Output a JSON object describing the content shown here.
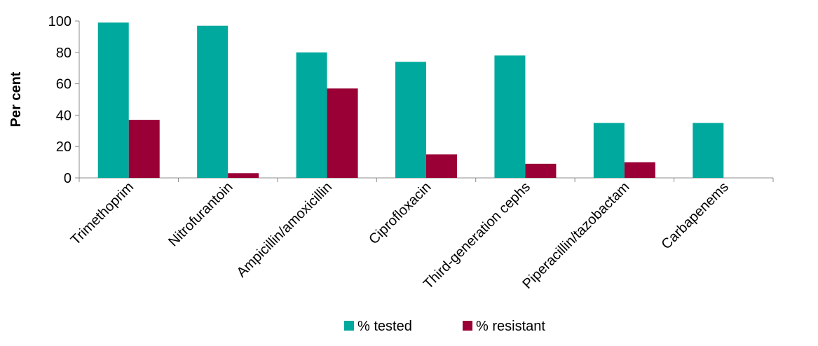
{
  "chart_data": {
    "type": "bar",
    "title": "",
    "xlabel": "",
    "ylabel": "Per cent",
    "ylim": [
      0,
      100
    ],
    "yticks": [
      0,
      20,
      40,
      60,
      80,
      100
    ],
    "grid": false,
    "legend_position": "bottom",
    "categories": [
      "Trimethoprim",
      "Nitrofurantoin",
      "Ampicillin/amoxicillin",
      "Ciprofloxacin",
      "Third-generation cephs",
      "Piperacillin/tazobactam",
      "Carbapenems"
    ],
    "series": [
      {
        "name": "% tested",
        "color": "#00A99D",
        "values": [
          99,
          97,
          80,
          74,
          78,
          35,
          35
        ]
      },
      {
        "name": "% resistant",
        "color": "#9A0036",
        "values": [
          37,
          3,
          57,
          15,
          9,
          10,
          0
        ]
      }
    ]
  }
}
